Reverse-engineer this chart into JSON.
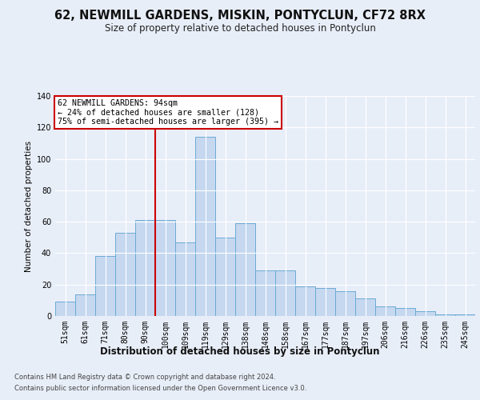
{
  "title1": "62, NEWMILL GARDENS, MISKIN, PONTYCLUN, CF72 8RX",
  "title2": "Size of property relative to detached houses in Pontyclun",
  "xlabel": "Distribution of detached houses by size in Pontyclun",
  "ylabel": "Number of detached properties",
  "bar_labels": [
    "51sqm",
    "61sqm",
    "71sqm",
    "80sqm",
    "90sqm",
    "100sqm",
    "109sqm",
    "119sqm",
    "129sqm",
    "138sqm",
    "148sqm",
    "158sqm",
    "167sqm",
    "177sqm",
    "187sqm",
    "197sqm",
    "206sqm",
    "216sqm",
    "226sqm",
    "235sqm",
    "245sqm"
  ],
  "bar_values": [
    9,
    14,
    38,
    53,
    61,
    61,
    47,
    114,
    50,
    59,
    29,
    29,
    19,
    18,
    16,
    11,
    6,
    5,
    3,
    1,
    1
  ],
  "bar_color": "#c5d8f0",
  "bar_edge_color": "#6aaad4",
  "vline_x_index": 4.5,
  "annotation_text": "62 NEWMILL GARDENS: 94sqm\n← 24% of detached houses are smaller (128)\n75% of semi-detached houses are larger (395) →",
  "ylim": [
    0,
    140
  ],
  "yticks": [
    0,
    20,
    40,
    60,
    80,
    100,
    120,
    140
  ],
  "footer1": "Contains HM Land Registry data © Crown copyright and database right 2024.",
  "footer2": "Contains public sector information licensed under the Open Government Licence v3.0.",
  "bg_color": "#e8eef8",
  "plot_bg_color": "#e8eef8",
  "grid_color": "#ffffff",
  "annotation_box_color": "#ffffff",
  "annotation_box_edge": "#cc0000",
  "vline_color": "#cc0000",
  "title1_fontsize": 10.5,
  "title2_fontsize": 8.5,
  "xlabel_fontsize": 8.5,
  "ylabel_fontsize": 7.5,
  "tick_fontsize": 7,
  "footer_fontsize": 6
}
